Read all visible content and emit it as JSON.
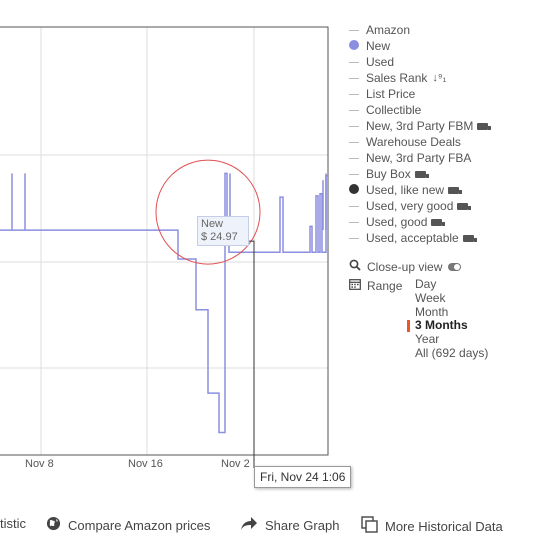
{
  "chart_data": {
    "type": "line",
    "x_ticks": [
      "Nov 8",
      "Nov 16",
      "Nov 2"
    ],
    "series": [
      {
        "name": "New",
        "color": "#8b8fe0",
        "points": [
          [
            0,
            24.97
          ],
          [
            178,
            24.97
          ],
          [
            178,
            22.4
          ],
          [
            196,
            22.4
          ],
          [
            196,
            17.9
          ],
          [
            208,
            17.9
          ],
          [
            208,
            10.5
          ],
          [
            219,
            10.5
          ],
          [
            219,
            7.0
          ],
          [
            225,
            7.0
          ],
          [
            225,
            30.0
          ],
          [
            227,
            30.0
          ],
          [
            227,
            24.97
          ],
          [
            229,
            24.97
          ],
          [
            229,
            23.0
          ],
          [
            280,
            23.0
          ],
          [
            280,
            27.9
          ],
          [
            283,
            27.9
          ],
          [
            283,
            23.0
          ],
          [
            310,
            23.0
          ],
          [
            310,
            25.3
          ],
          [
            312,
            25.3
          ],
          [
            312,
            23.0
          ],
          [
            316,
            23.0
          ],
          [
            316,
            28.0
          ],
          [
            318,
            28.0
          ],
          [
            318,
            23.0
          ],
          [
            320,
            23.0
          ],
          [
            320,
            28.2
          ],
          [
            322,
            28.2
          ],
          [
            322,
            23.0
          ],
          [
            326,
            23.0
          ],
          [
            326,
            29.8
          ],
          [
            328,
            29.8
          ]
        ]
      }
    ],
    "spikes": [
      [
        12,
        30.0
      ],
      [
        25,
        30.0
      ],
      [
        230,
        30.0
      ],
      [
        323,
        29.4
      ],
      [
        326,
        30.0
      ]
    ],
    "highlight_point": {
      "x": 227,
      "y": 24.97
    },
    "ylim": [
      5,
      43
    ]
  },
  "tooltip": {
    "label": "New",
    "price": "$ 24.97",
    "date": "Fri, Nov 24 1:06"
  },
  "legend": [
    {
      "label": "Amazon",
      "swatch": "line",
      "color": "#bbbbbb"
    },
    {
      "label": "New",
      "swatch": "dot",
      "color": "#8b8fe0"
    },
    {
      "label": "Used",
      "swatch": "line",
      "color": "#bbbbbb"
    },
    {
      "label": "Sales Rank",
      "swatch": "line",
      "color": "#bbbbbb",
      "icon": "sort-icon"
    },
    {
      "label": "List Price",
      "swatch": "line",
      "color": "#bbbbbb"
    },
    {
      "label": "Collectible",
      "swatch": "line",
      "color": "#bbbbbb"
    },
    {
      "label": "New, 3rd Party FBM",
      "swatch": "line",
      "color": "#bbbbbb",
      "icon": "truck-icon"
    },
    {
      "label": "Warehouse Deals",
      "swatch": "line",
      "color": "#bbbbbb"
    },
    {
      "label": "New, 3rd Party FBA",
      "swatch": "line",
      "color": "#bbbbbb"
    },
    {
      "label": "Buy Box",
      "swatch": "line",
      "color": "#bbbbbb",
      "icon": "truck-icon"
    },
    {
      "label": "Used, like new",
      "swatch": "dot",
      "color": "#333333",
      "icon": "truck-icon"
    },
    {
      "label": "Used, very good",
      "swatch": "line",
      "color": "#bbbbbb",
      "icon": "truck-icon"
    },
    {
      "label": "Used, good",
      "swatch": "line",
      "color": "#bbbbbb",
      "icon": "truck-icon"
    },
    {
      "label": "Used, acceptable",
      "swatch": "line",
      "color": "#bbbbbb",
      "icon": "truck-icon"
    }
  ],
  "controls": {
    "closeup": "Close-up view",
    "range": "Range"
  },
  "range_options": [
    {
      "label": "Day",
      "selected": false
    },
    {
      "label": "Week",
      "selected": false
    },
    {
      "label": "Month",
      "selected": false
    },
    {
      "label": "3 Months",
      "selected": true
    },
    {
      "label": "Year",
      "selected": false
    },
    {
      "label": "All (692 days)",
      "selected": false
    }
  ],
  "footer": {
    "statistic": "tistic",
    "compare": "Compare Amazon prices",
    "share": "Share Graph",
    "history": "More Historical Data"
  },
  "colors": {
    "series": "#8b8fe0",
    "grid": "#dddddd",
    "highlight": "#e05050",
    "range_accent": "#e8562a"
  }
}
